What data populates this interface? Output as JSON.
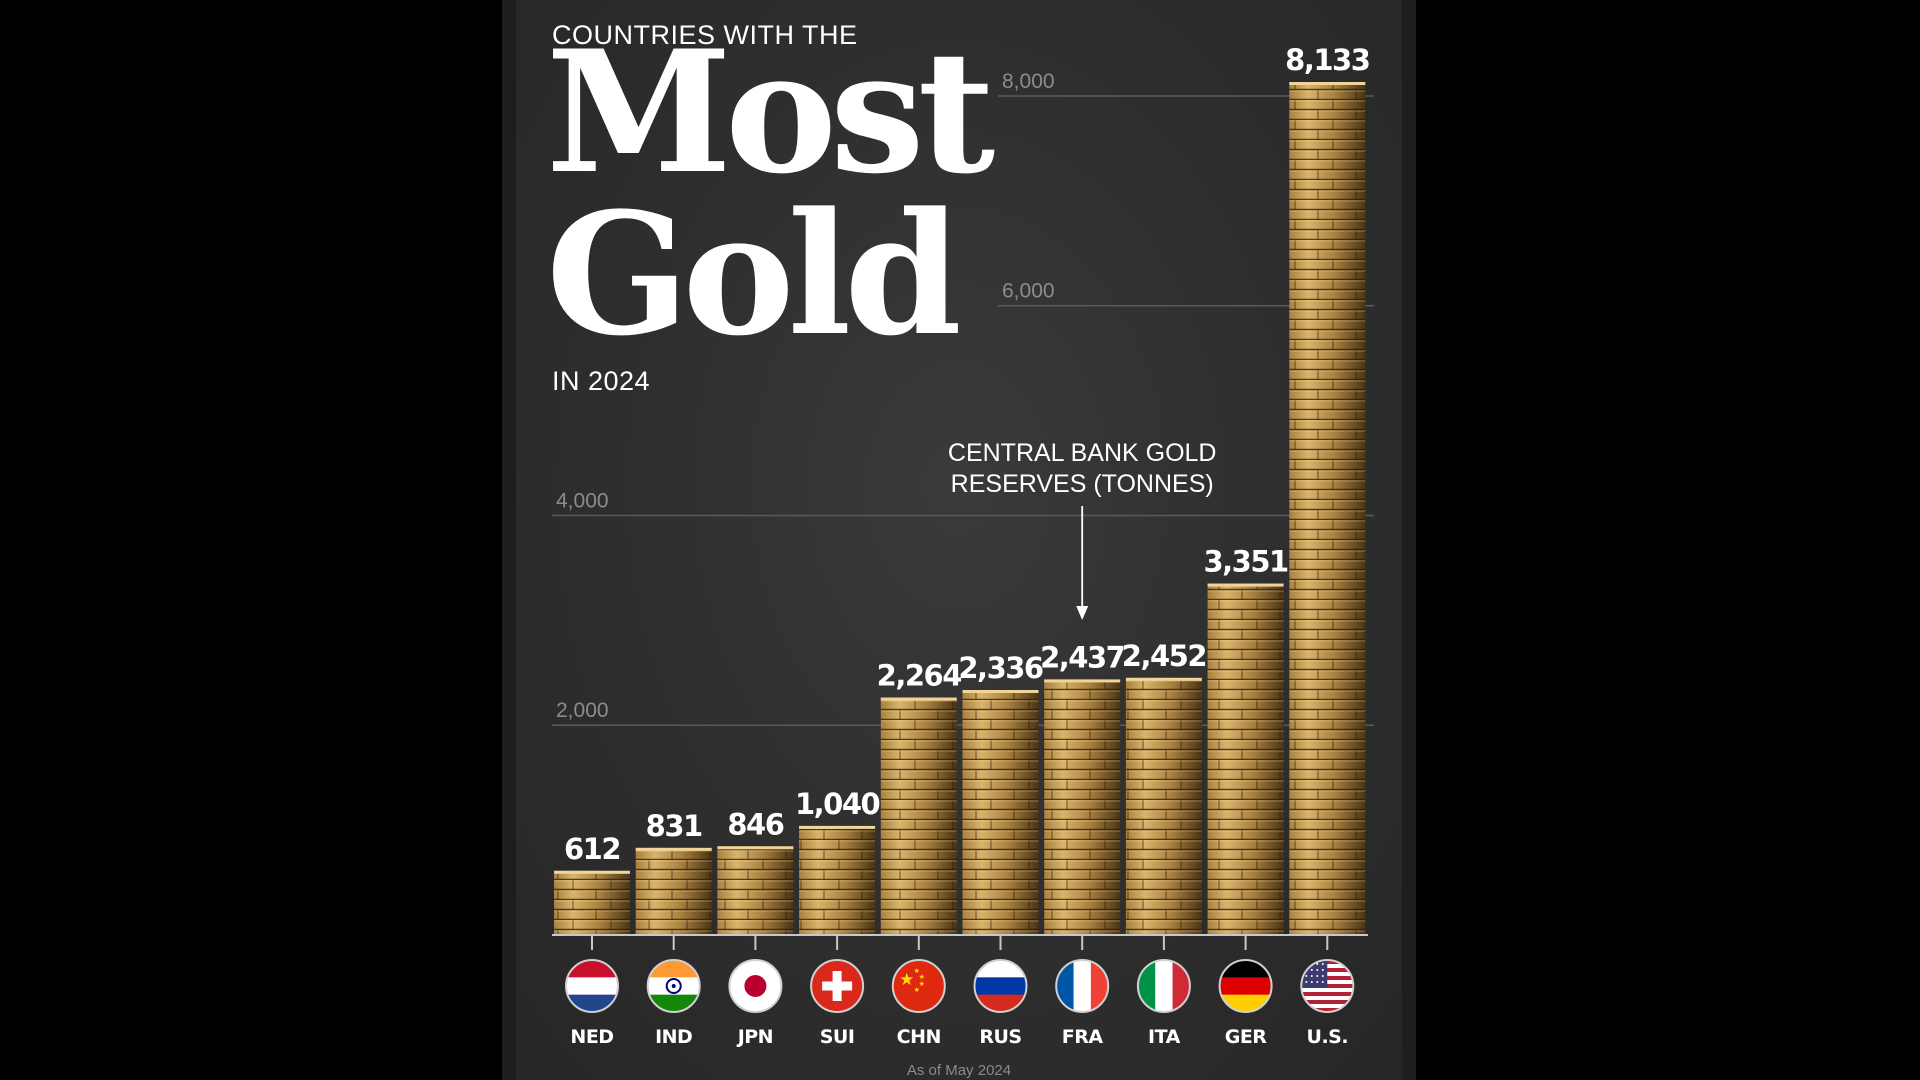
{
  "header": {
    "top_line": "COUNTRIES WITH THE",
    "title_line_1": "Most",
    "title_line_2": "Gold",
    "bottom_line": "IN 2024"
  },
  "annotation": {
    "line_1": "CENTRAL BANK GOLD",
    "line_2": "RESERVES (TONNES)"
  },
  "footnote": "As of May 2024",
  "colors": {
    "background": "#333333",
    "gridline": "#5a5a5a",
    "tick_text": "#8c8c8c",
    "gold_light": "#d9b46a",
    "gold_mid": "#a8803f",
    "gold_dark": "#4a3415"
  },
  "chart_data": {
    "type": "bar",
    "title": "Countries with the Most Gold in 2024",
    "ylabel": "Central Bank Gold Reserves (Tonnes)",
    "ylim": [
      0,
      8133
    ],
    "yticks": [
      2000,
      4000,
      6000,
      8000
    ],
    "ytick_labels": [
      "2,000",
      "4,000",
      "6,000",
      "8,000"
    ],
    "grid": true,
    "categories": [
      "NED",
      "IND",
      "JPN",
      "SUI",
      "CHN",
      "RUS",
      "FRA",
      "ITA",
      "GER",
      "U.S."
    ],
    "values": [
      612,
      831,
      846,
      1040,
      2264,
      2336,
      2437,
      2452,
      3351,
      8133
    ],
    "value_labels": [
      "612",
      "831",
      "846",
      "1,040",
      "2,264",
      "2,336",
      "2,437",
      "2,452",
      "3,351",
      "8,133"
    ],
    "flags": [
      "netherlands-flag",
      "india-flag",
      "japan-flag",
      "switzerland-flag",
      "china-flag",
      "russia-flag",
      "france-flag",
      "italy-flag",
      "germany-flag",
      "usa-flag"
    ]
  }
}
